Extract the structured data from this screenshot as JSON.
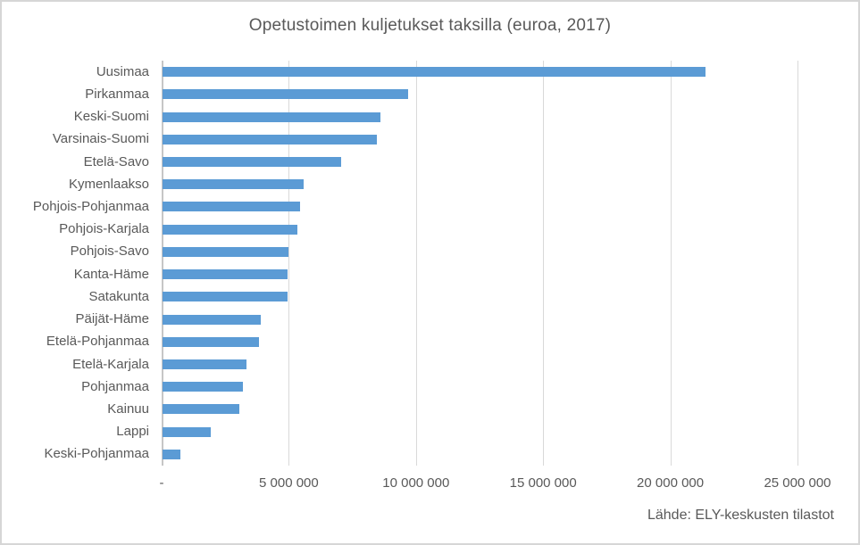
{
  "chart_data": {
    "type": "bar",
    "orientation": "horizontal",
    "title": "Opetustoimen kuljetukset taksilla (euroa, 2017)",
    "categories": [
      "Uusimaa",
      "Pirkanmaa",
      "Keski-Suomi",
      "Varsinais-Suomi",
      "Etelä-Savo",
      "Kymenlaakso",
      "Pohjois-Pohjanmaa",
      "Pohjois-Karjala",
      "Pohjois-Savo",
      "Kanta-Häme",
      "Satakunta",
      "Päijät-Häme",
      "Etelä-Pohjanmaa",
      "Etelä-Karjala",
      "Pohjanmaa",
      "Kainuu",
      "Lappi",
      "Keski-Pohjanmaa"
    ],
    "values": [
      21300000,
      9650000,
      8550000,
      8400000,
      7000000,
      5550000,
      5400000,
      5300000,
      4950000,
      4900000,
      4900000,
      3850000,
      3800000,
      3300000,
      3150000,
      3000000,
      1900000,
      700000
    ],
    "xlabel": "",
    "ylabel": "",
    "xlim": [
      0,
      25000000
    ],
    "grid": true,
    "legend": "none",
    "x_ticks": {
      "values": [
        0,
        5000000,
        10000000,
        15000000,
        20000000,
        25000000
      ],
      "labels": [
        "-",
        "5 000 000",
        "10 000 000",
        "15 000 000",
        "20 000 000",
        "25 000 000"
      ]
    },
    "source": "Lähde: ELY-keskusten tilastot",
    "colors": {
      "bar": "#5B9BD5",
      "gridline": "#D9D9D9",
      "axis": "#C6C6C6",
      "text": "#595959",
      "background": "#FFFFFF"
    }
  }
}
